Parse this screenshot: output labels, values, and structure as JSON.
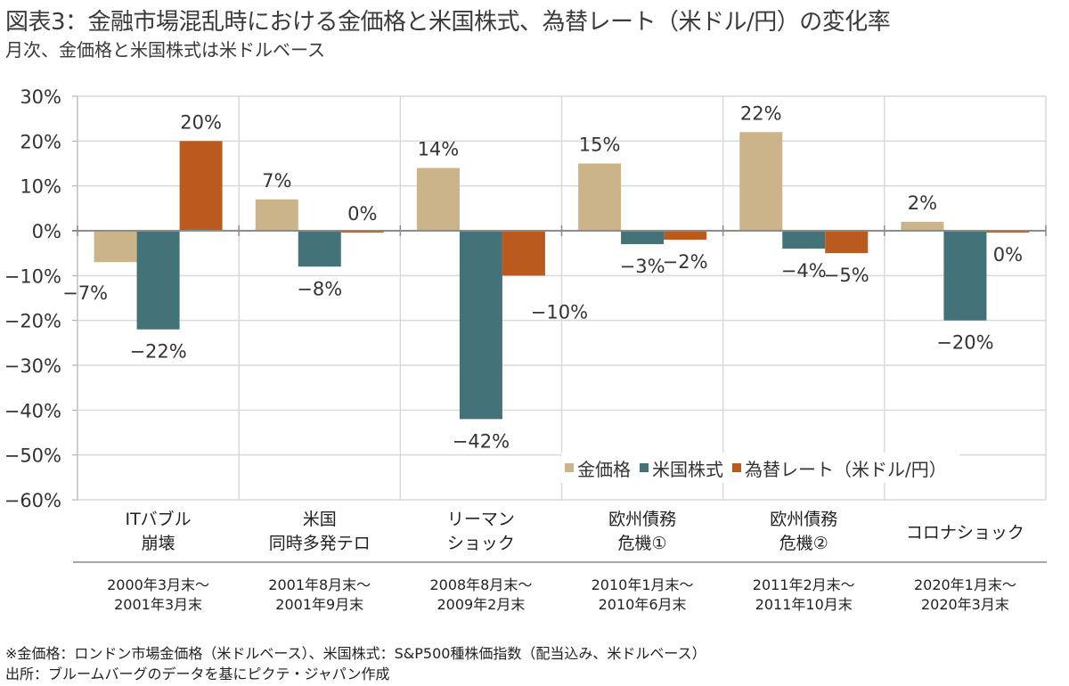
{
  "header": {
    "title": "図表3：金融市場混乱時における金価格と米国株式、為替レート（米ドル/円）の変化率",
    "subtitle": "月次、金価格と米国株式は米ドルベース"
  },
  "chart_data": {
    "type": "bar",
    "title": "図表3：金融市場混乱時における金価格と米国株式、為替レート（米ドル/円）の変化率",
    "subtitle": "月次、金価格と米国株式は米ドルベース",
    "xlabel": "",
    "ylabel": "",
    "ylim": [
      -60,
      30
    ],
    "yticks": [
      30,
      20,
      10,
      0,
      -10,
      -20,
      -30,
      -40,
      -50,
      -60
    ],
    "ytick_labels": [
      "30%",
      "20%",
      "10%",
      "0%",
      "−10%",
      "−20%",
      "−30%",
      "−40%",
      "−50%",
      "−60%"
    ],
    "grid": true,
    "legend_position": "bottom-right",
    "categories": [
      "ITバブル\n崩壊",
      "米国\n同時多発テロ",
      "リーマン\nショック",
      "欧州債務\n危機①",
      "欧州債務\n危機②",
      "コロナショック"
    ],
    "periods": [
      "2000年3月末～\n2001年3月末",
      "2001年8月末～\n2001年9月末",
      "2008年8月末～\n2009年2月末",
      "2010年1月末～\n2010年6月末",
      "2011年2月末～\n2011年10月末",
      "2020年1月末～\n2020年3月末"
    ],
    "series": [
      {
        "name": "金価格",
        "color": "#CBB48A",
        "values": [
          -7,
          7,
          14,
          15,
          22,
          2
        ],
        "labels": [
          "−7%",
          "7%",
          "14%",
          "15%",
          "22%",
          "2%"
        ]
      },
      {
        "name": "米国株式",
        "color": "#437278",
        "values": [
          -22,
          -8,
          -42,
          -3,
          -4,
          -20
        ],
        "labels": [
          "−22%",
          "−8%",
          "−42%",
          "−3%",
          "−4%",
          "−20%"
        ]
      },
      {
        "name": "為替レート（米ドル/円）",
        "color": "#BA5A1E",
        "values": [
          20,
          0,
          -10,
          -2,
          -5,
          0
        ],
        "labels": [
          "20%",
          "0%",
          "−10%",
          "−2%",
          "−5%",
          "0%"
        ]
      }
    ]
  },
  "footer": {
    "note": "※金価格：ロンドン市場金価格（米ドルベース）、米国株式：S&P500種株価指数（配当込み、米ドルベース）",
    "source": "出所：ブルームバーグのデータを基にピクテ・ジャパン作成"
  }
}
